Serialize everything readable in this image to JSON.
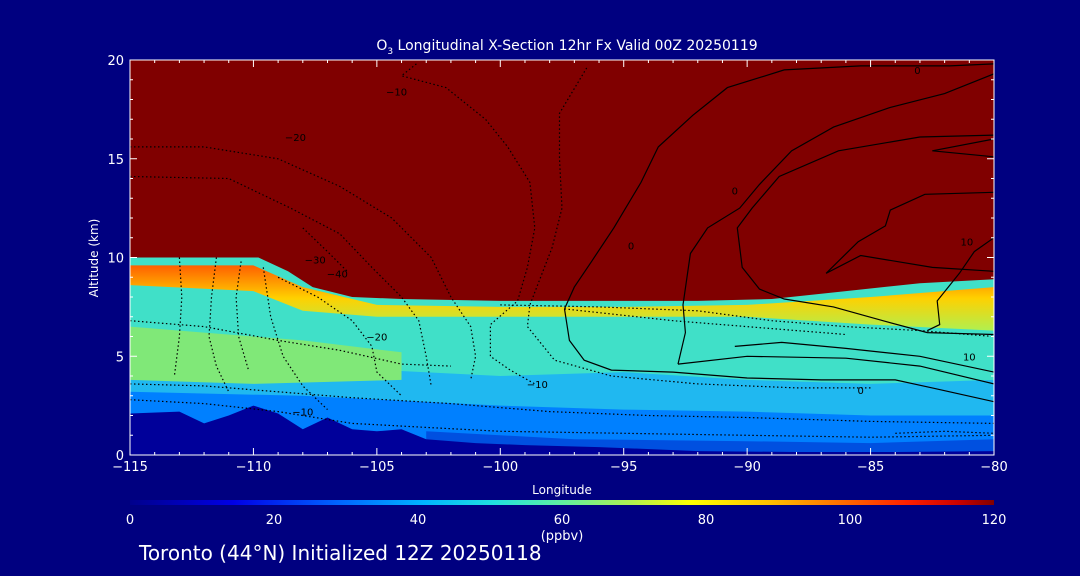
{
  "chart_data": {
    "type": "heatmap",
    "title_prefix": "O",
    "title_subscript": "3",
    "title_rest": " Longitudinal X-Section 12hr  Fx Valid 00Z 20250119",
    "xlabel": "Longitude",
    "ylabel": "Altitude (km)",
    "xlim": [
      -115,
      -80
    ],
    "ylim": [
      0,
      20
    ],
    "x_ticks": [
      -115,
      -110,
      -105,
      -100,
      -95,
      -90,
      -85,
      -80
    ],
    "x_tick_labels": [
      "−115",
      "−110",
      "−105",
      "−100",
      "−95",
      "−90",
      "−85",
      "−80"
    ],
    "y_ticks": [
      0,
      5,
      10,
      15,
      20
    ],
    "y_tick_labels": [
      "0",
      "5",
      "10",
      "15",
      "20"
    ],
    "colorbar": {
      "min": 0,
      "max": 120,
      "ticks": [
        0,
        20,
        40,
        60,
        80,
        100,
        120
      ],
      "tick_labels": [
        "0",
        "20",
        "40",
        "60",
        "80",
        "100",
        "120"
      ],
      "unit": "(ppbv)"
    },
    "contour_labels": [
      {
        "x": -108.3,
        "y": 16.1,
        "text": "−20"
      },
      {
        "x": -107.5,
        "y": 9.9,
        "text": "−30"
      },
      {
        "x": -106.6,
        "y": 9.2,
        "text": "−40"
      },
      {
        "x": -105,
        "y": 6.0,
        "text": "−20"
      },
      {
        "x": -104.2,
        "y": 18.4,
        "text": "−10"
      },
      {
        "x": -108.0,
        "y": 2.2,
        "text": "−10"
      },
      {
        "x": -98.5,
        "y": 3.6,
        "text": "−10"
      },
      {
        "x": -94.7,
        "y": 10.6,
        "text": "0"
      },
      {
        "x": -90.5,
        "y": 13.4,
        "text": "0"
      },
      {
        "x": -85.4,
        "y": 3.3,
        "text": "0"
      },
      {
        "x": -83.1,
        "y": 19.5,
        "text": "0"
      },
      {
        "x": -81.0,
        "y": 5.0,
        "text": "10"
      },
      {
        "x": -81.1,
        "y": 10.8,
        "text": "10"
      }
    ]
  },
  "footer_text": "Toronto (44°N) Initialized 12Z 20250118",
  "colors": {
    "background": "#000080",
    "stratosphere": "#800000",
    "terrain": "#00009a"
  }
}
